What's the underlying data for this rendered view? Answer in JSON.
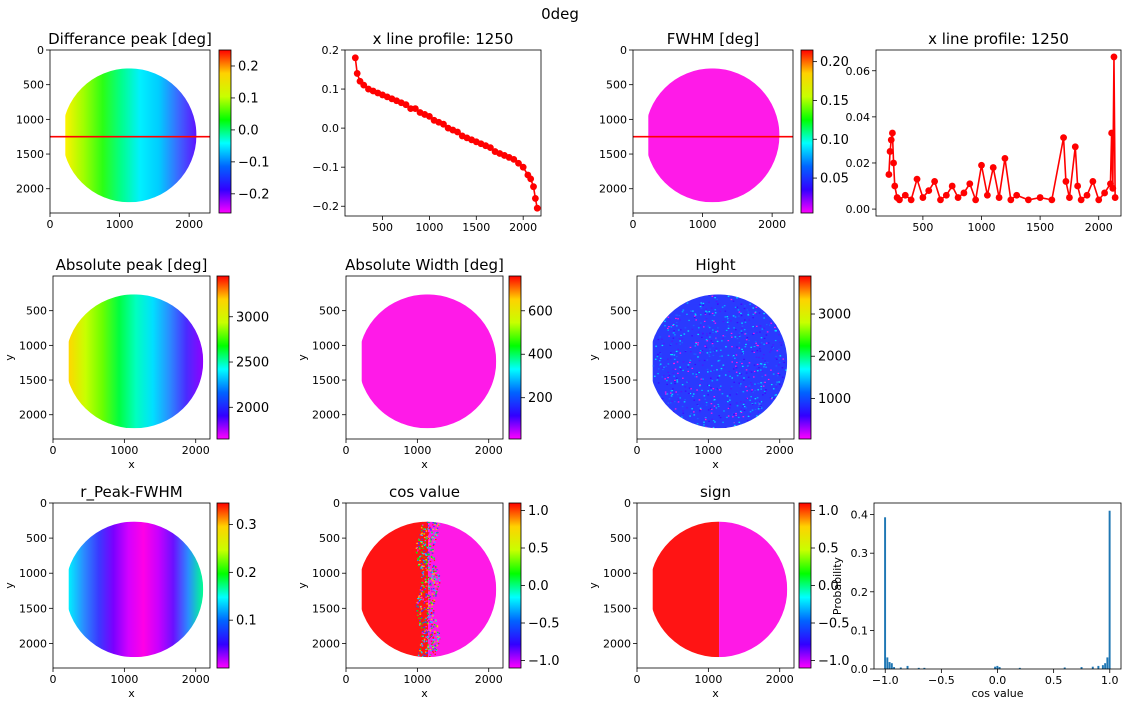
{
  "figure": {
    "suptitle": "0deg"
  },
  "chart_data": [
    {
      "id": "p1",
      "type": "heatmap",
      "title": "Differance peak [deg]",
      "xlabel": "",
      "ylabel": "",
      "xticks": [
        "0",
        "1000",
        "2000"
      ],
      "yticks": [
        "0",
        "500",
        "1000",
        "1500",
        "2000"
      ],
      "xlim": [
        0,
        2300
      ],
      "ylim": [
        0,
        2350
      ],
      "image": "circle",
      "pattern": "hgrad",
      "gradient": [
        "#fff200",
        "#9dff00",
        "#2bff14",
        "#00ff8c",
        "#00f0ff",
        "#00ccff",
        "#3a6bff",
        "#5d12ff"
      ],
      "hline": 1250,
      "hline_color": "#ff0000",
      "colorbar": {
        "ticks": [
          "0.2",
          "0.1",
          "0.0",
          "−0.1",
          "−0.2"
        ],
        "tick_values": [
          0.2,
          0.1,
          0.0,
          -0.1,
          -0.2
        ],
        "range": [
          -0.26,
          0.25
        ]
      }
    },
    {
      "id": "p2",
      "type": "line",
      "title": "x line profile: 1250",
      "xlabel": "",
      "ylabel": "",
      "xticks": [
        "500",
        "1000",
        "1500",
        "2000"
      ],
      "xtick_values": [
        500,
        1000,
        1500,
        2000
      ],
      "yticks": [
        "0.2",
        "0.1",
        "0.0",
        "−0.1",
        "−0.2"
      ],
      "ytick_values": [
        0.2,
        0.1,
        0.0,
        -0.1,
        -0.2
      ],
      "xlim": [
        100,
        2190
      ],
      "ylim": [
        -0.225,
        0.2
      ],
      "series": [
        {
          "color": "#ff0000",
          "x": [
            210,
            230,
            260,
            300,
            350,
            400,
            450,
            500,
            550,
            600,
            650,
            700,
            750,
            800,
            850,
            900,
            950,
            1000,
            1050,
            1100,
            1150,
            1200,
            1250,
            1300,
            1350,
            1400,
            1450,
            1500,
            1550,
            1600,
            1650,
            1700,
            1750,
            1800,
            1850,
            1900,
            1950,
            2000,
            2050,
            2080,
            2110,
            2130,
            2150
          ],
          "y": [
            0.18,
            0.14,
            0.12,
            0.11,
            0.1,
            0.095,
            0.09,
            0.085,
            0.08,
            0.075,
            0.07,
            0.065,
            0.06,
            0.05,
            0.05,
            0.04,
            0.035,
            0.03,
            0.02,
            0.015,
            0.01,
            0.0,
            -0.005,
            -0.01,
            -0.02,
            -0.025,
            -0.03,
            -0.035,
            -0.04,
            -0.045,
            -0.05,
            -0.06,
            -0.065,
            -0.07,
            -0.075,
            -0.08,
            -0.09,
            -0.1,
            -0.12,
            -0.13,
            -0.15,
            -0.18,
            -0.205
          ]
        }
      ]
    },
    {
      "id": "p3",
      "type": "heatmap",
      "title": "FWHM [deg]",
      "xlabel": "",
      "ylabel": "",
      "xticks": [
        "0",
        "1000",
        "2000"
      ],
      "yticks": [
        "0",
        "500",
        "1000",
        "1500",
        "2000"
      ],
      "xlim": [
        0,
        2300
      ],
      "ylim": [
        0,
        2350
      ],
      "image": "circle",
      "pattern": "flat",
      "fill": "#ff1ae8",
      "hline": 1250,
      "hline_color": "#ff0000",
      "colorbar": {
        "ticks": [
          "0.20",
          "0.15",
          "0.10",
          "0.05"
        ],
        "tick_values": [
          0.2,
          0.15,
          0.1,
          0.05
        ],
        "range": [
          0.005,
          0.215
        ]
      }
    },
    {
      "id": "p4",
      "type": "line",
      "title": "x line profile: 1250",
      "xlabel": "",
      "ylabel": "",
      "xticks": [
        "500",
        "1000",
        "1500",
        "2000"
      ],
      "xtick_values": [
        500,
        1000,
        1500,
        2000
      ],
      "yticks": [
        "0.06",
        "0.04",
        "0.02",
        "0.00"
      ],
      "ytick_values": [
        0.06,
        0.04,
        0.02,
        0.0
      ],
      "xlim": [
        100,
        2190
      ],
      "ylim": [
        -0.003,
        0.069
      ],
      "series": [
        {
          "color": "#ff0000",
          "x": [
            210,
            220,
            230,
            240,
            250,
            260,
            280,
            300,
            350,
            400,
            450,
            500,
            550,
            600,
            650,
            700,
            750,
            800,
            850,
            900,
            950,
            1000,
            1050,
            1100,
            1150,
            1200,
            1250,
            1300,
            1400,
            1500,
            1600,
            1700,
            1720,
            1750,
            1800,
            1820,
            1850,
            1900,
            1950,
            2000,
            2050,
            2100,
            2110,
            2120,
            2130,
            2140
          ],
          "y": [
            0.015,
            0.025,
            0.03,
            0.033,
            0.02,
            0.01,
            0.005,
            0.004,
            0.006,
            0.004,
            0.013,
            0.005,
            0.008,
            0.012,
            0.004,
            0.006,
            0.01,
            0.005,
            0.007,
            0.011,
            0.004,
            0.019,
            0.006,
            0.018,
            0.005,
            0.022,
            0.004,
            0.006,
            0.004,
            0.005,
            0.004,
            0.031,
            0.012,
            0.005,
            0.027,
            0.01,
            0.004,
            0.006,
            0.012,
            0.004,
            0.007,
            0.011,
            0.033,
            0.009,
            0.066,
            0.005
          ]
        }
      ]
    },
    {
      "id": "p5",
      "type": "heatmap",
      "title": "Absolute peak [deg]",
      "xlabel": "x",
      "ylabel": "y",
      "xticks": [
        "0",
        "1000",
        "2000"
      ],
      "yticks": [
        "500",
        "1000",
        "1500",
        "2000"
      ],
      "xlim": [
        0,
        2200
      ],
      "ylim": [
        0,
        2350
      ],
      "image": "circle",
      "pattern": "hgrad",
      "gradient": [
        "#ffd700",
        "#c8ff00",
        "#6bff00",
        "#00ff40",
        "#00ffbf",
        "#00e0ff",
        "#2a8cff",
        "#4a2bff",
        "#9000ff"
      ],
      "colorbar": {
        "ticks": [
          "3000",
          "2500",
          "2000"
        ],
        "tick_values": [
          3000,
          2500,
          2000
        ],
        "range": [
          1650,
          3450
        ]
      }
    },
    {
      "id": "p6",
      "type": "heatmap",
      "title": "Absolute Width [deg]",
      "xlabel": "x",
      "ylabel": "y",
      "xticks": [
        "0",
        "1000",
        "2000"
      ],
      "yticks": [
        "500",
        "1000",
        "1500",
        "2000"
      ],
      "xlim": [
        0,
        2200
      ],
      "ylim": [
        0,
        2350
      ],
      "image": "circle",
      "pattern": "flat",
      "fill": "#ff1ae8",
      "colorbar": {
        "ticks": [
          "600",
          "400",
          "200"
        ],
        "tick_values": [
          600,
          400,
          200
        ],
        "range": [
          10,
          760
        ]
      }
    },
    {
      "id": "p7",
      "type": "heatmap",
      "title": "Hight",
      "xlabel": "x",
      "ylabel": "y",
      "xticks": [
        "0",
        "1000",
        "2000"
      ],
      "yticks": [
        "500",
        "1000",
        "1500",
        "2000"
      ],
      "xlim": [
        0,
        2200
      ],
      "ylim": [
        0,
        2350
      ],
      "image": "circle",
      "pattern": "noise",
      "fill": "#2a3aff",
      "noise_colors": [
        "#00e5ff",
        "#4a1aff",
        "#1a60ff",
        "#ff19e6",
        "#00b0ff",
        "#3a0aff"
      ],
      "colorbar": {
        "ticks": [
          "3000",
          "2000",
          "1000"
        ],
        "tick_values": [
          3000,
          2000,
          1000
        ],
        "range": [
          40,
          3900
        ]
      }
    },
    {
      "id": "p9",
      "type": "heatmap",
      "title": "r_Peak-FWHM",
      "xlabel": "x",
      "ylabel": "y",
      "xticks": [
        "0",
        "1000",
        "2000"
      ],
      "yticks": [
        "0",
        "500",
        "1000",
        "1500",
        "2000"
      ],
      "xlim": [
        0,
        2200
      ],
      "ylim": [
        0,
        2350
      ],
      "image": "circle",
      "pattern": "hgrad",
      "gradient": [
        "#00f0ff",
        "#2a8cff",
        "#3a3aff",
        "#7a00ff",
        "#d400ff",
        "#ff00e6",
        "#c800ff",
        "#6a10ff",
        "#2a8cff",
        "#00ff90"
      ],
      "colorbar": {
        "ticks": [
          "0.3",
          "0.2",
          "0.1"
        ],
        "tick_values": [
          0.3,
          0.2,
          0.1
        ],
        "range": [
          0.0,
          0.345
        ]
      }
    },
    {
      "id": "p10",
      "type": "heatmap",
      "title": "cos value",
      "xlabel": "x",
      "ylabel": "y",
      "xticks": [
        "0",
        "1000",
        "2000"
      ],
      "yticks": [
        "0",
        "500",
        "1000",
        "1500",
        "2000"
      ],
      "xlim": [
        0,
        2200
      ],
      "ylim": [
        0,
        2350
      ],
      "image": "circle",
      "pattern": "split",
      "left_color": "#ff1414",
      "right_color": "#ff19e6",
      "split_x": 1150,
      "split_fuzzy": true,
      "colorbar": {
        "ticks": [
          "1.0",
          "0.5",
          "0.0",
          "−0.5",
          "−1.0"
        ],
        "tick_values": [
          1.0,
          0.5,
          0.0,
          -0.5,
          -1.0
        ],
        "range": [
          -1.1,
          1.1
        ]
      }
    },
    {
      "id": "p11",
      "type": "heatmap",
      "title": "sign",
      "xlabel": "x",
      "ylabel": "y",
      "xticks": [
        "0",
        "1000",
        "2000"
      ],
      "yticks": [
        "0",
        "500",
        "1000",
        "1500",
        "2000"
      ],
      "xlim": [
        0,
        2200
      ],
      "ylim": [
        0,
        2350
      ],
      "image": "circle",
      "pattern": "split",
      "left_color": "#ff1414",
      "right_color": "#ff19e6",
      "split_x": 1150,
      "split_fuzzy": false,
      "colorbar": {
        "ticks": [
          "1.0",
          "0.5",
          "0.0",
          "−0.5",
          "−1.0"
        ],
        "tick_values": [
          1.0,
          0.5,
          0.0,
          -0.5,
          -1.0
        ],
        "range": [
          -1.1,
          1.1
        ]
      }
    },
    {
      "id": "p12",
      "type": "bar",
      "title": "",
      "xlabel": "cos value",
      "ylabel": "Probability",
      "xticks": [
        "−1.0",
        "−0.5",
        "0.0",
        "0.5",
        "1.0"
      ],
      "xtick_values": [
        -1.0,
        -0.5,
        0.0,
        0.5,
        1.0
      ],
      "yticks": [
        "0.0",
        "0.1",
        "0.2",
        "0.3",
        "0.4"
      ],
      "ytick_values": [
        0.0,
        0.1,
        0.2,
        0.3,
        0.4
      ],
      "xlim": [
        -1.1,
        1.1
      ],
      "ylim": [
        0,
        0.43
      ],
      "bin_width": 0.02,
      "color": "#1f77b4",
      "x": [
        -1.0,
        -0.98,
        -0.96,
        -0.94,
        -0.92,
        -0.86,
        -0.8,
        -0.7,
        -0.65,
        -0.02,
        0.0,
        0.02,
        0.2,
        0.6,
        0.75,
        0.85,
        0.9,
        0.94,
        0.96,
        0.98,
        1.0
      ],
      "values": [
        0.393,
        0.03,
        0.018,
        0.015,
        0.005,
        0.004,
        0.008,
        0.003,
        0.003,
        0.006,
        0.008,
        0.005,
        0.003,
        0.004,
        0.005,
        0.006,
        0.008,
        0.01,
        0.015,
        0.03,
        0.41
      ]
    }
  ]
}
